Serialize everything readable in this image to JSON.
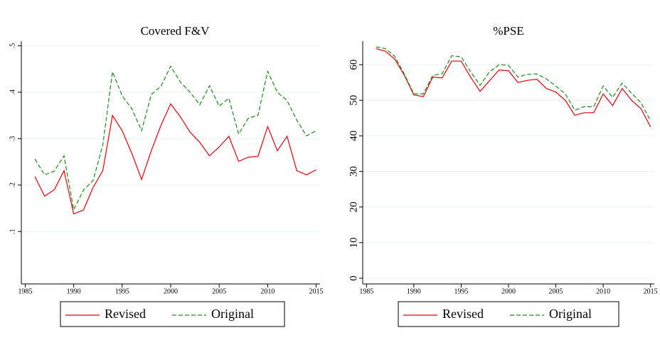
{
  "chart_data": [
    {
      "type": "line",
      "title": "Covered F&V",
      "x": [
        1986,
        1987,
        1988,
        1989,
        1990,
        1991,
        1992,
        1993,
        1994,
        1995,
        1996,
        1997,
        1998,
        1999,
        2000,
        2001,
        2002,
        2003,
        2004,
        2005,
        2006,
        2007,
        2008,
        2009,
        2010,
        2011,
        2012,
        2013,
        2014,
        2015
      ],
      "series": [
        {
          "name": "Revised",
          "color": "#e8000b",
          "line_style": "solid",
          "values": [
            0.218,
            0.176,
            0.19,
            0.231,
            0.138,
            0.146,
            0.195,
            0.231,
            0.35,
            0.317,
            0.268,
            0.212,
            0.274,
            0.329,
            0.375,
            0.347,
            0.314,
            0.292,
            0.263,
            0.282,
            0.305,
            0.251,
            0.26,
            0.262,
            0.326,
            0.274,
            0.305,
            0.231,
            0.222,
            0.233
          ]
        },
        {
          "name": "Original",
          "color": "#1a8c1a",
          "line_style": "dashed",
          "values": [
            0.256,
            0.222,
            0.23,
            0.263,
            0.147,
            0.189,
            0.21,
            0.286,
            0.444,
            0.392,
            0.364,
            0.317,
            0.395,
            0.413,
            0.456,
            0.422,
            0.4,
            0.373,
            0.414,
            0.37,
            0.387,
            0.31,
            0.344,
            0.35,
            0.445,
            0.4,
            0.382,
            0.34,
            0.306,
            0.317
          ]
        }
      ],
      "xlim": [
        1984.6,
        2015.4
      ],
      "xticks": [
        1985,
        1990,
        1995,
        2000,
        2005,
        2010,
        2015
      ],
      "ylim": [
        -0.013,
        0.51
      ],
      "yticks": [
        {
          "value": 0.1,
          "label": ".1"
        },
        {
          "value": 0.2,
          "label": ".2"
        },
        {
          "value": 0.3,
          "label": ".3"
        },
        {
          "value": 0.4,
          "label": ".4"
        },
        {
          "value": 0.5,
          "label": ".5"
        }
      ],
      "grid": true
    },
    {
      "type": "line",
      "title": "%PSE",
      "x": [
        1986,
        1987,
        1988,
        1989,
        1990,
        1991,
        1992,
        1993,
        1994,
        1995,
        1996,
        1997,
        1998,
        1999,
        2000,
        2001,
        2002,
        2003,
        2004,
        2005,
        2006,
        2007,
        2008,
        2009,
        2010,
        2011,
        2012,
        2013,
        2014,
        2015
      ],
      "series": [
        {
          "name": "Revised",
          "color": "#e8000b",
          "line_style": "solid",
          "values": [
            64.5,
            63.8,
            61.5,
            57,
            51.5,
            51,
            56.5,
            56.3,
            61,
            61,
            56.5,
            52.5,
            55.5,
            58.5,
            58.3,
            55,
            55.6,
            55.9,
            53.3,
            52.3,
            50,
            45.8,
            46.5,
            46.5,
            51.8,
            48.5,
            53.3,
            50,
            47.6,
            42.5
          ]
        },
        {
          "name": "Original",
          "color": "#1a8c1a",
          "line_style": "dashed",
          "values": [
            65,
            64.5,
            62.3,
            57.3,
            51.8,
            51.8,
            57,
            57.5,
            62.5,
            62.2,
            58,
            54.2,
            58,
            60,
            59.8,
            56.5,
            57.3,
            57.4,
            56,
            54,
            51.8,
            47.2,
            48.2,
            48.2,
            54,
            50.8,
            54.8,
            52,
            49.3,
            44.2
          ]
        }
      ],
      "xlim": [
        1984.6,
        2015.4
      ],
      "xticks": [
        1985,
        1990,
        1995,
        2000,
        2005,
        2010,
        2015
      ],
      "ylim": [
        -1.6,
        66.6
      ],
      "yticks": [
        0,
        10,
        20,
        30,
        40,
        50,
        60
      ],
      "grid": true
    }
  ]
}
